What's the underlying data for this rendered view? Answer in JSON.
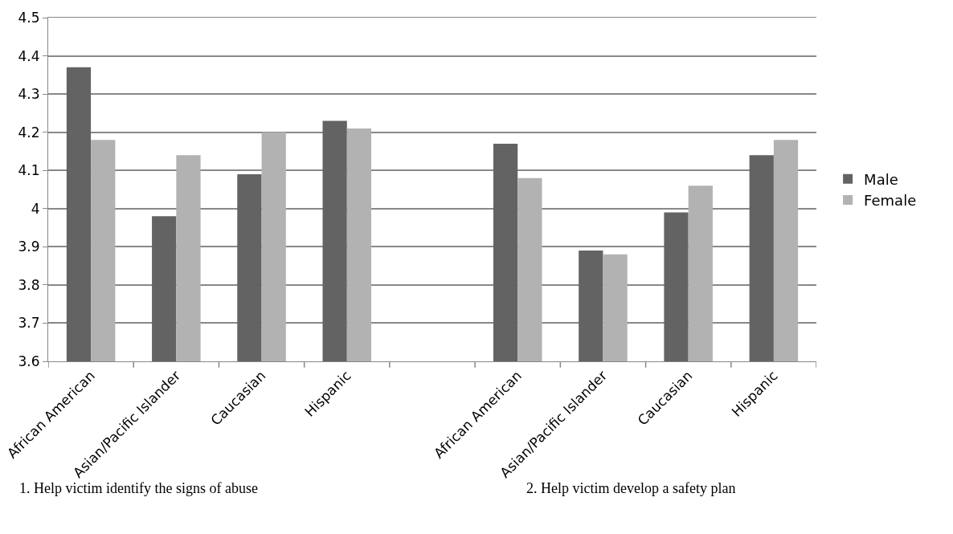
{
  "chart_data": {
    "type": "bar",
    "categories": [
      "African American",
      "Asian/Pacific Islander",
      "Caucasian",
      "Hispanic",
      null,
      "African American",
      "Asian/Pacific Islander",
      "Caucasian",
      "Hispanic"
    ],
    "series": [
      {
        "name": "Male",
        "color": "#636363",
        "values": [
          4.37,
          3.98,
          4.09,
          4.23,
          null,
          4.17,
          3.89,
          3.99,
          4.14
        ]
      },
      {
        "name": "Female",
        "color": "#b2b2b2",
        "values": [
          4.18,
          4.14,
          4.2,
          4.21,
          null,
          4.08,
          3.88,
          4.06,
          4.18
        ]
      }
    ],
    "ylim": [
      3.6,
      4.5
    ],
    "yticks": [
      3.6,
      3.7,
      3.8,
      3.9,
      4,
      4.1,
      4.2,
      4.3,
      4.4,
      4.5
    ],
    "grid": "y",
    "legend": "right",
    "annotations": [
      "1. Help victim identify the signs of abuse",
      "2. Help victim develop a safety plan"
    ]
  }
}
